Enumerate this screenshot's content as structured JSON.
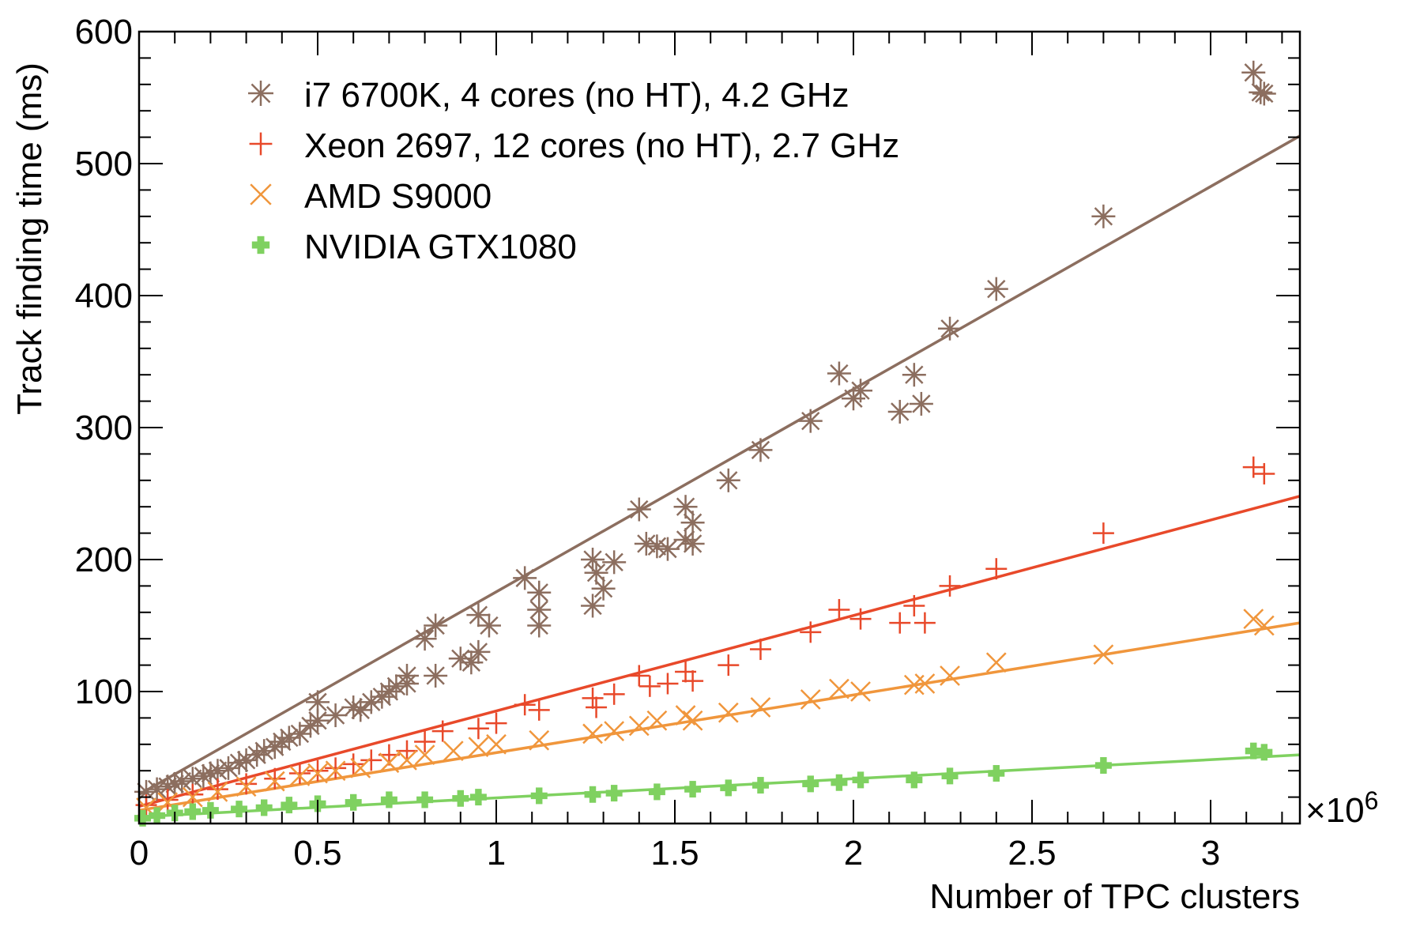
{
  "chart_data": {
    "type": "scatter",
    "title": "",
    "xlabel": "Number of TPC clusters",
    "ylabel": "Track finding time (ms)",
    "x_multiplier_label": "×10",
    "x_multiplier_exponent": "6",
    "xlim": [
      0,
      3.25
    ],
    "ylim": [
      0,
      600
    ],
    "x_ticks": [
      "0",
      "0.5",
      "1",
      "1.5",
      "2",
      "2.5",
      "3"
    ],
    "y_ticks": [
      "100",
      "200",
      "300",
      "400",
      "500",
      "600"
    ],
    "grid": false,
    "legend_position": "top-left",
    "series": [
      {
        "name": "i7 6700K, 4 cores (no HT), 4.2 GHz",
        "color": "#8c6e5f",
        "marker": "asterisk",
        "fit": [
          [
            0,
            22
          ],
          [
            3.25,
            521
          ]
        ],
        "points": [
          [
            0.02,
            24
          ],
          [
            0.05,
            26
          ],
          [
            0.08,
            28
          ],
          [
            0.1,
            30
          ],
          [
            0.12,
            32
          ],
          [
            0.15,
            34
          ],
          [
            0.18,
            36
          ],
          [
            0.2,
            38
          ],
          [
            0.22,
            40
          ],
          [
            0.25,
            42
          ],
          [
            0.28,
            46
          ],
          [
            0.3,
            48
          ],
          [
            0.33,
            52
          ],
          [
            0.35,
            55
          ],
          [
            0.38,
            58
          ],
          [
            0.4,
            62
          ],
          [
            0.42,
            65
          ],
          [
            0.45,
            68
          ],
          [
            0.48,
            74
          ],
          [
            0.5,
            78
          ],
          [
            0.5,
            92
          ],
          [
            0.55,
            82
          ],
          [
            0.6,
            88
          ],
          [
            0.62,
            86
          ],
          [
            0.65,
            92
          ],
          [
            0.68,
            96
          ],
          [
            0.7,
            100
          ],
          [
            0.72,
            104
          ],
          [
            0.75,
            106
          ],
          [
            0.75,
            112
          ],
          [
            0.8,
            140
          ],
          [
            0.83,
            150
          ],
          [
            0.83,
            112
          ],
          [
            0.9,
            125
          ],
          [
            0.93,
            122
          ],
          [
            0.95,
            130
          ],
          [
            0.95,
            158
          ],
          [
            0.98,
            150
          ],
          [
            1.08,
            186
          ],
          [
            1.12,
            175
          ],
          [
            1.12,
            150
          ],
          [
            1.12,
            162
          ],
          [
            1.27,
            200
          ],
          [
            1.27,
            165
          ],
          [
            1.28,
            190
          ],
          [
            1.3,
            178
          ],
          [
            1.33,
            198
          ],
          [
            1.4,
            238
          ],
          [
            1.42,
            212
          ],
          [
            1.45,
            210
          ],
          [
            1.48,
            208
          ],
          [
            1.53,
            240
          ],
          [
            1.53,
            215
          ],
          [
            1.55,
            228
          ],
          [
            1.55,
            212
          ],
          [
            1.65,
            260
          ],
          [
            1.74,
            283
          ],
          [
            1.88,
            305
          ],
          [
            1.96,
            341
          ],
          [
            2.0,
            322
          ],
          [
            2.02,
            328
          ],
          [
            2.13,
            312
          ],
          [
            2.17,
            340
          ],
          [
            2.19,
            318
          ],
          [
            2.27,
            375
          ],
          [
            2.4,
            405
          ],
          [
            2.7,
            460
          ],
          [
            3.12,
            569
          ],
          [
            3.14,
            554
          ],
          [
            3.15,
            553
          ]
        ]
      },
      {
        "name": "Xeon 2697, 12 cores (no HT), 2.7 GHz",
        "color": "#e8492a",
        "marker": "plus",
        "fit": [
          [
            0,
            13
          ],
          [
            3.25,
            248
          ]
        ],
        "points": [
          [
            0.02,
            14
          ],
          [
            0.08,
            18
          ],
          [
            0.15,
            22
          ],
          [
            0.22,
            26
          ],
          [
            0.3,
            30
          ],
          [
            0.38,
            34
          ],
          [
            0.45,
            38
          ],
          [
            0.5,
            40
          ],
          [
            0.55,
            42
          ],
          [
            0.6,
            45
          ],
          [
            0.65,
            48
          ],
          [
            0.7,
            52
          ],
          [
            0.75,
            55
          ],
          [
            0.8,
            62
          ],
          [
            0.85,
            70
          ],
          [
            0.95,
            72
          ],
          [
            1.0,
            76
          ],
          [
            1.08,
            90
          ],
          [
            1.12,
            86
          ],
          [
            1.27,
            95
          ],
          [
            1.28,
            88
          ],
          [
            1.33,
            98
          ],
          [
            1.4,
            112
          ],
          [
            1.43,
            104
          ],
          [
            1.48,
            106
          ],
          [
            1.53,
            115
          ],
          [
            1.55,
            108
          ],
          [
            1.65,
            120
          ],
          [
            1.74,
            132
          ],
          [
            1.88,
            145
          ],
          [
            1.96,
            162
          ],
          [
            2.02,
            155
          ],
          [
            2.13,
            152
          ],
          [
            2.17,
            165
          ],
          [
            2.2,
            152
          ],
          [
            2.27,
            180
          ],
          [
            2.4,
            193
          ],
          [
            2.7,
            220
          ],
          [
            3.12,
            270
          ],
          [
            3.15,
            265
          ]
        ]
      },
      {
        "name": "AMD S9000",
        "color": "#f0963c",
        "marker": "cross",
        "fit": [
          [
            0,
            10
          ],
          [
            3.25,
            152
          ]
        ],
        "points": [
          [
            0.02,
            12
          ],
          [
            0.08,
            16
          ],
          [
            0.15,
            20
          ],
          [
            0.22,
            24
          ],
          [
            0.3,
            28
          ],
          [
            0.38,
            32
          ],
          [
            0.45,
            36
          ],
          [
            0.5,
            38
          ],
          [
            0.55,
            40
          ],
          [
            0.62,
            42
          ],
          [
            0.7,
            46
          ],
          [
            0.75,
            48
          ],
          [
            0.8,
            52
          ],
          [
            0.88,
            55
          ],
          [
            0.95,
            58
          ],
          [
            1.0,
            60
          ],
          [
            1.12,
            63
          ],
          [
            1.27,
            68
          ],
          [
            1.33,
            70
          ],
          [
            1.4,
            74
          ],
          [
            1.45,
            78
          ],
          [
            1.53,
            82
          ],
          [
            1.55,
            78
          ],
          [
            1.65,
            84
          ],
          [
            1.74,
            88
          ],
          [
            1.88,
            94
          ],
          [
            1.96,
            102
          ],
          [
            2.02,
            100
          ],
          [
            2.17,
            105
          ],
          [
            2.2,
            106
          ],
          [
            2.27,
            112
          ],
          [
            2.4,
            122
          ],
          [
            2.7,
            128
          ],
          [
            3.12,
            155
          ],
          [
            3.15,
            150
          ]
        ]
      },
      {
        "name": "NVIDIA GTX1080",
        "color": "#7fd160",
        "marker": "thick-plus",
        "fit": [
          [
            0,
            5
          ],
          [
            3.25,
            52
          ]
        ],
        "points": [
          [
            0.01,
            4
          ],
          [
            0.05,
            6
          ],
          [
            0.1,
            8
          ],
          [
            0.15,
            9
          ],
          [
            0.2,
            10
          ],
          [
            0.28,
            11
          ],
          [
            0.35,
            12
          ],
          [
            0.42,
            14
          ],
          [
            0.5,
            15
          ],
          [
            0.6,
            16
          ],
          [
            0.7,
            18
          ],
          [
            0.8,
            18
          ],
          [
            0.9,
            19
          ],
          [
            0.95,
            20
          ],
          [
            1.12,
            21
          ],
          [
            1.27,
            22
          ],
          [
            1.33,
            23
          ],
          [
            1.45,
            24
          ],
          [
            1.55,
            26
          ],
          [
            1.65,
            27
          ],
          [
            1.74,
            29
          ],
          [
            1.88,
            30
          ],
          [
            1.96,
            31
          ],
          [
            2.02,
            33
          ],
          [
            2.17,
            33
          ],
          [
            2.27,
            36
          ],
          [
            2.4,
            38
          ],
          [
            2.7,
            44
          ],
          [
            3.12,
            55
          ],
          [
            3.15,
            54
          ]
        ]
      }
    ]
  }
}
